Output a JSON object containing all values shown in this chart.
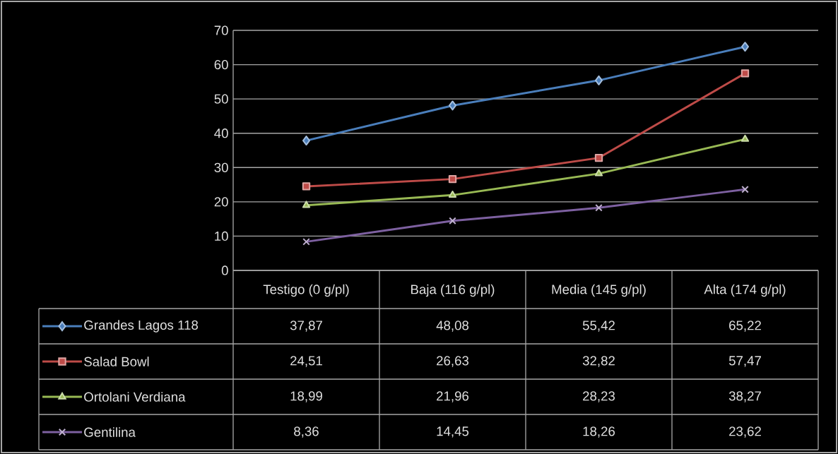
{
  "chart_data": {
    "type": "line",
    "categories": [
      "Testigo (0 g/pl)",
      "Baja (116 g/pl)",
      "Media (145 g/pl)",
      "Alta (174 g/pl)"
    ],
    "series": [
      {
        "name": "Grandes Lagos 118",
        "color": "#4a7ebb",
        "marker": "diamond",
        "values": [
          37.87,
          48.08,
          55.42,
          65.22
        ],
        "value_labels": [
          "37,87",
          "48,08",
          "55,42",
          "65,22"
        ]
      },
      {
        "name": "Salad Bowl",
        "color": "#be4b48",
        "marker": "square",
        "values": [
          24.51,
          26.63,
          32.82,
          57.47
        ],
        "value_labels": [
          "24,51",
          "26,63",
          "32,82",
          "57,47"
        ]
      },
      {
        "name": "Ortolani Verdiana",
        "color": "#98b954",
        "marker": "triangle",
        "values": [
          18.99,
          21.96,
          28.23,
          38.27
        ],
        "value_labels": [
          "18,99",
          "21,96",
          "28,23",
          "38,27"
        ]
      },
      {
        "name": "Gentilina",
        "color": "#7d60a0",
        "marker": "cross",
        "values": [
          8.36,
          14.45,
          18.26,
          23.62
        ],
        "value_labels": [
          "8,36",
          "14,45",
          "18,26",
          "23,62"
        ]
      }
    ],
    "ylim": [
      0,
      70
    ],
    "yticks": [
      0,
      10,
      20,
      30,
      40,
      50,
      60,
      70
    ],
    "grid": "y",
    "legend": "bottom"
  }
}
